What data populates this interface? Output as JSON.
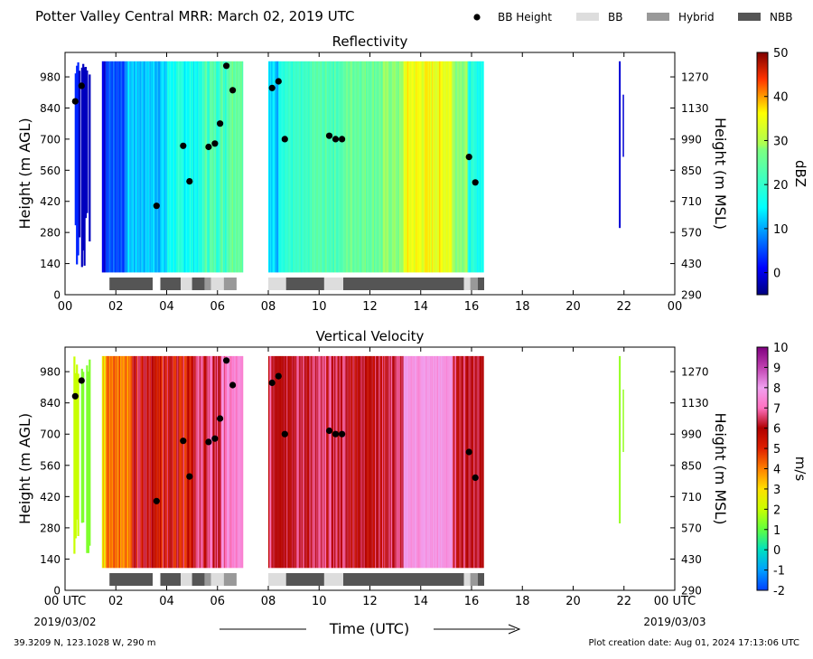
{
  "figure": {
    "title": "Potter Valley Central MRR:  March 02, 2019 UTC",
    "legend": [
      {
        "label": "BB Height",
        "kind": "dot",
        "color": "#000000"
      },
      {
        "label": "BB",
        "kind": "rect",
        "color": "#dddddd"
      },
      {
        "label": "Hybrid",
        "kind": "rect",
        "color": "#999999"
      },
      {
        "label": "NBB",
        "kind": "rect",
        "color": "#555555"
      }
    ],
    "x_label": "Time (UTC)",
    "start_date": "2019/03/02",
    "end_date": "2019/03/03",
    "location": "39.3209 N, 123.1028 W, 290 m",
    "creation_date": "Plot creation date: Aug 01, 2024 17:13:06 UTC"
  },
  "chart_data": [
    {
      "type": "heatmap",
      "title": "Reflectivity",
      "ylabel": "Height (m AGL)",
      "ylabel_right": "Height (m MSL)",
      "colorbar_label": "dBZ",
      "xlim": [
        0,
        24
      ],
      "ylim": [
        0,
        1090
      ],
      "x_ticks": [
        "00",
        "02",
        "04",
        "06",
        "08",
        "10",
        "12",
        "14",
        "16",
        "18",
        "20",
        "22",
        "00"
      ],
      "y_ticks": [
        0,
        140,
        280,
        420,
        560,
        700,
        840,
        980
      ],
      "y_ticks_right": [
        290,
        430,
        570,
        710,
        850,
        990,
        1130,
        1270
      ],
      "colorbar_range": [
        -5,
        50
      ],
      "colorbar_ticks": [
        0,
        10,
        20,
        30,
        40,
        50
      ],
      "colormap": "jet",
      "bb_height_points": [
        {
          "x": 0.4,
          "y": 870
        },
        {
          "x": 0.65,
          "y": 940
        },
        {
          "x": 3.6,
          "y": 400
        },
        {
          "x": 4.65,
          "y": 670
        },
        {
          "x": 4.9,
          "y": 510
        },
        {
          "x": 5.65,
          "y": 665
        },
        {
          "x": 5.9,
          "y": 680
        },
        {
          "x": 6.1,
          "y": 770
        },
        {
          "x": 6.35,
          "y": 1030
        },
        {
          "x": 6.6,
          "y": 920
        },
        {
          "x": 8.15,
          "y": 930
        },
        {
          "x": 8.4,
          "y": 960
        },
        {
          "x": 8.65,
          "y": 700
        },
        {
          "x": 10.4,
          "y": 715
        },
        {
          "x": 10.65,
          "y": 700
        },
        {
          "x": 10.9,
          "y": 700
        },
        {
          "x": 15.9,
          "y": 620
        },
        {
          "x": 16.15,
          "y": 505
        }
      ],
      "bb_type_segments": [
        {
          "start": 1.75,
          "end": 3.45,
          "type": "NBB"
        },
        {
          "start": 3.75,
          "end": 4.55,
          "type": "NBB"
        },
        {
          "start": 4.55,
          "end": 5.0,
          "type": "BB"
        },
        {
          "start": 5.0,
          "end": 5.5,
          "type": "NBB"
        },
        {
          "start": 5.5,
          "end": 5.75,
          "type": "Hybrid"
        },
        {
          "start": 5.75,
          "end": 6.25,
          "type": "BB"
        },
        {
          "start": 6.25,
          "end": 6.75,
          "type": "Hybrid"
        },
        {
          "start": 8.0,
          "end": 8.7,
          "type": "BB"
        },
        {
          "start": 8.7,
          "end": 10.2,
          "type": "NBB"
        },
        {
          "start": 10.2,
          "end": 10.95,
          "type": "BB"
        },
        {
          "start": 10.95,
          "end": 15.7,
          "type": "NBB"
        },
        {
          "start": 15.7,
          "end": 15.95,
          "type": "BB"
        },
        {
          "start": 15.95,
          "end": 16.25,
          "type": "Hybrid"
        },
        {
          "start": 16.25,
          "end": 16.5,
          "type": "NBB"
        }
      ]
    },
    {
      "type": "heatmap",
      "title": "Vertical Velocity",
      "ylabel": "Height (m AGL)",
      "ylabel_right": "Height (m MSL)",
      "colorbar_label": "m/s",
      "xlim": [
        0,
        24
      ],
      "ylim": [
        0,
        1090
      ],
      "x_ticks": [
        "00 UTC",
        "02",
        "04",
        "06",
        "08",
        "10",
        "12",
        "14",
        "16",
        "18",
        "20",
        "22",
        "00 UTC"
      ],
      "y_ticks": [
        0,
        140,
        280,
        420,
        560,
        700,
        840,
        980
      ],
      "y_ticks_right": [
        290,
        430,
        570,
        710,
        850,
        990,
        1130,
        1270
      ],
      "colorbar_range": [
        -2,
        10
      ],
      "colorbar_ticks": [
        -2,
        -1,
        0,
        1,
        2,
        3,
        4,
        5,
        6,
        7,
        8,
        9,
        10
      ],
      "colormap": "velocity",
      "bb_height_points": [
        {
          "x": 0.4,
          "y": 870
        },
        {
          "x": 0.65,
          "y": 940
        },
        {
          "x": 3.6,
          "y": 400
        },
        {
          "x": 4.65,
          "y": 670
        },
        {
          "x": 4.9,
          "y": 510
        },
        {
          "x": 5.65,
          "y": 665
        },
        {
          "x": 5.9,
          "y": 680
        },
        {
          "x": 6.1,
          "y": 770
        },
        {
          "x": 6.35,
          "y": 1030
        },
        {
          "x": 6.6,
          "y": 920
        },
        {
          "x": 8.15,
          "y": 930
        },
        {
          "x": 8.4,
          "y": 960
        },
        {
          "x": 8.65,
          "y": 700
        },
        {
          "x": 10.4,
          "y": 715
        },
        {
          "x": 10.65,
          "y": 700
        },
        {
          "x": 10.9,
          "y": 700
        },
        {
          "x": 15.9,
          "y": 620
        },
        {
          "x": 16.15,
          "y": 505
        }
      ],
      "bb_type_segments": [
        {
          "start": 1.75,
          "end": 3.45,
          "type": "NBB"
        },
        {
          "start": 3.75,
          "end": 4.55,
          "type": "NBB"
        },
        {
          "start": 4.55,
          "end": 5.0,
          "type": "BB"
        },
        {
          "start": 5.0,
          "end": 5.5,
          "type": "NBB"
        },
        {
          "start": 5.5,
          "end": 5.75,
          "type": "Hybrid"
        },
        {
          "start": 5.75,
          "end": 6.25,
          "type": "BB"
        },
        {
          "start": 6.25,
          "end": 6.75,
          "type": "Hybrid"
        },
        {
          "start": 8.0,
          "end": 8.7,
          "type": "BB"
        },
        {
          "start": 8.7,
          "end": 10.2,
          "type": "NBB"
        },
        {
          "start": 10.2,
          "end": 10.95,
          "type": "BB"
        },
        {
          "start": 10.95,
          "end": 15.7,
          "type": "NBB"
        },
        {
          "start": 15.7,
          "end": 15.95,
          "type": "BB"
        },
        {
          "start": 15.95,
          "end": 16.25,
          "type": "Hybrid"
        },
        {
          "start": 16.25,
          "end": 16.5,
          "type": "NBB"
        }
      ]
    }
  ]
}
